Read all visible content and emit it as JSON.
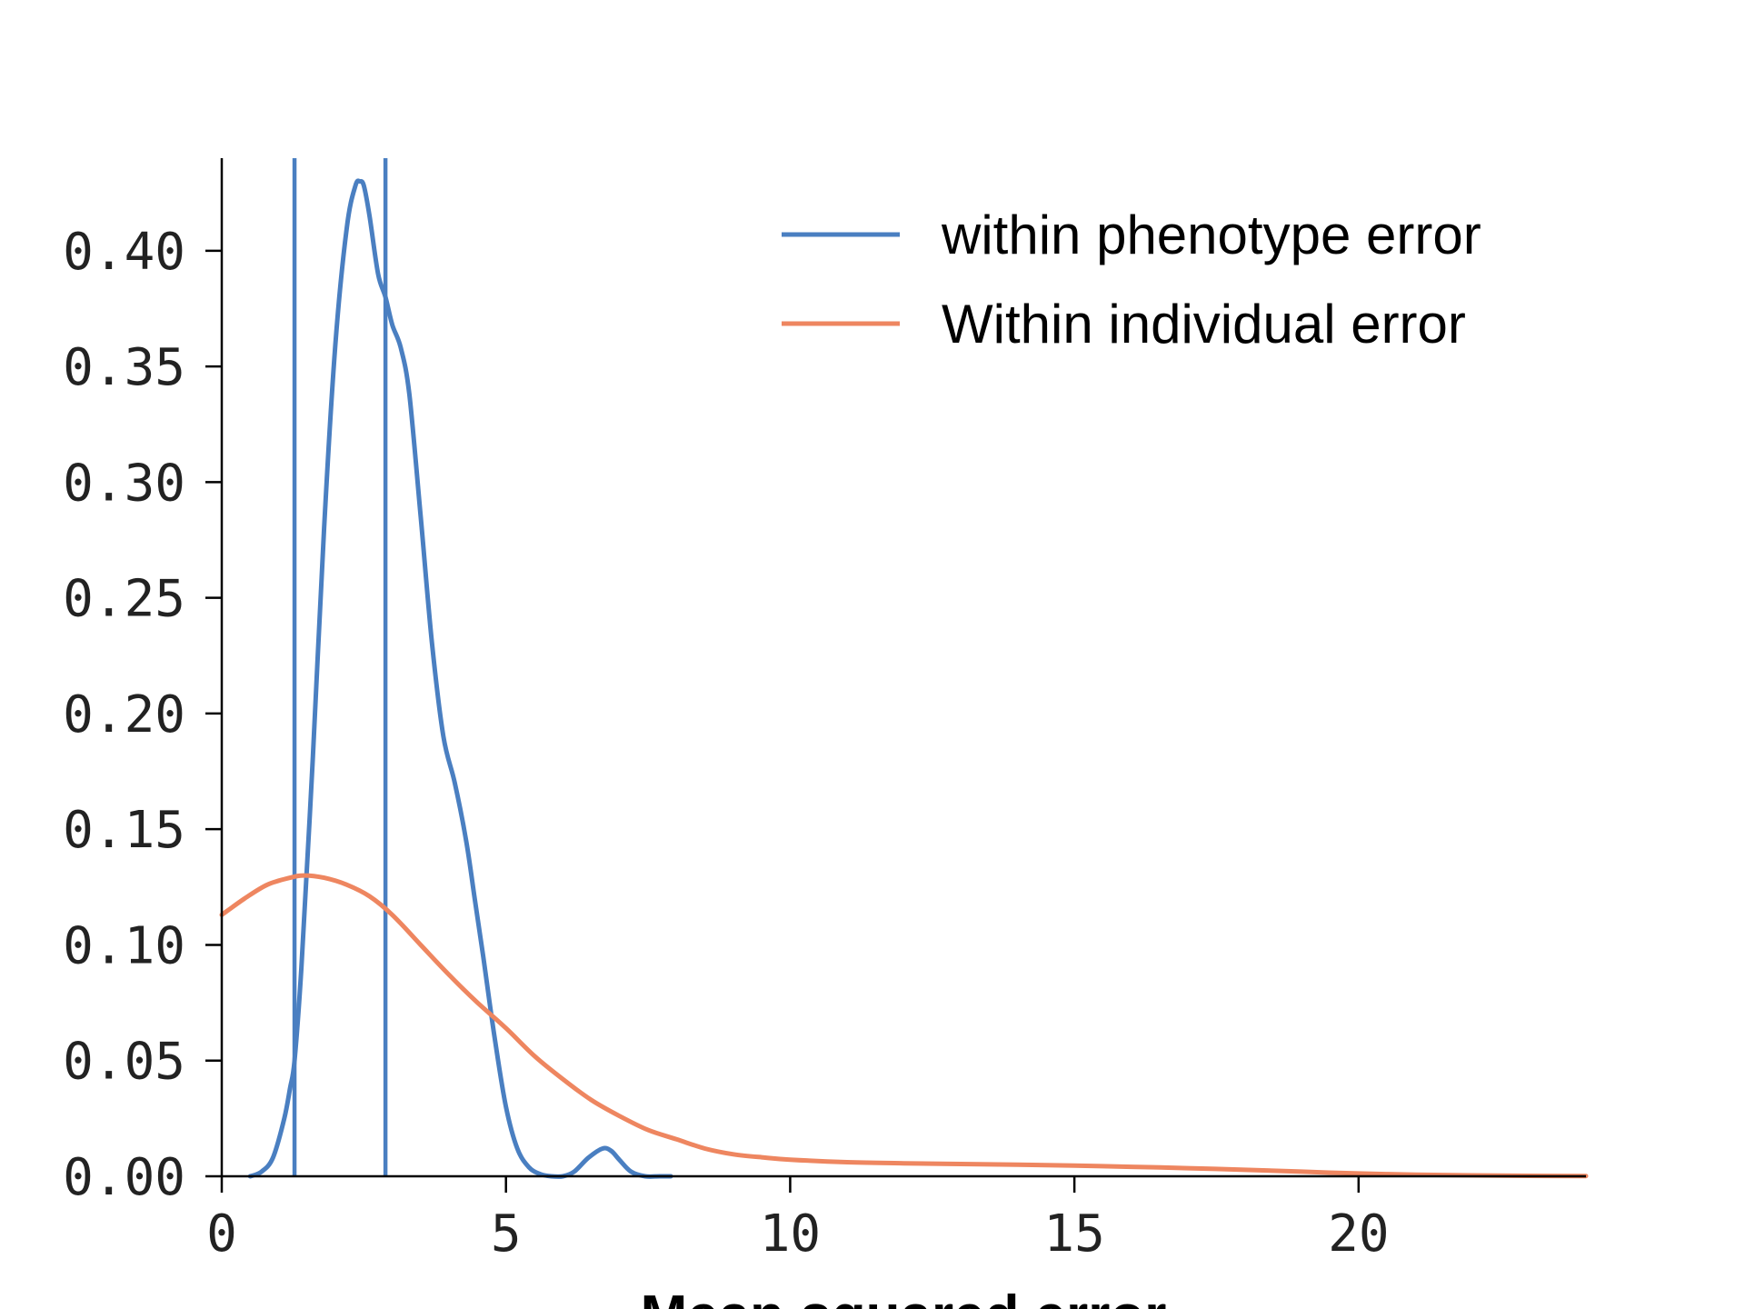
{
  "chart_data": {
    "type": "line",
    "xlabel": "Mean squared error",
    "ylabel": "",
    "xlim": [
      0,
      24
    ],
    "ylim": [
      0,
      0.44
    ],
    "x_ticks": [
      "0",
      "5",
      "10",
      "15",
      "20"
    ],
    "x_tick_values": [
      0,
      5,
      10,
      15,
      20
    ],
    "y_ticks": [
      "0.00",
      "0.05",
      "0.10",
      "0.15",
      "0.20",
      "0.25",
      "0.30",
      "0.35",
      "0.40"
    ],
    "y_tick_values": [
      0,
      0.05,
      0.1,
      0.15,
      0.2,
      0.25,
      0.3,
      0.35,
      0.4
    ],
    "grid": false,
    "legend": {
      "position": "top-right"
    },
    "vlines": [
      {
        "x": 1.28,
        "color": "#4a7fc1"
      },
      {
        "x": 2.88,
        "color": "#4a7fc1"
      }
    ],
    "series": [
      {
        "name": "within phenotype error",
        "color": "#4a7fc1",
        "x": [
          0.5,
          0.7,
          0.9,
          1.1,
          1.2,
          1.28,
          1.4,
          1.6,
          1.8,
          2.0,
          2.2,
          2.35,
          2.43,
          2.5,
          2.6,
          2.75,
          2.88,
          3.0,
          3.15,
          3.3,
          3.5,
          3.7,
          3.9,
          4.1,
          4.3,
          4.45,
          4.6,
          4.8,
          5.0,
          5.2,
          5.4,
          5.6,
          5.8,
          6.0,
          6.2,
          6.45,
          6.7,
          6.85,
          7.0,
          7.2,
          7.45,
          7.7,
          7.9
        ],
        "y": [
          0.0,
          0.002,
          0.008,
          0.025,
          0.038,
          0.05,
          0.09,
          0.18,
          0.28,
          0.36,
          0.41,
          0.428,
          0.43,
          0.428,
          0.415,
          0.39,
          0.38,
          0.368,
          0.358,
          0.338,
          0.285,
          0.23,
          0.19,
          0.17,
          0.145,
          0.12,
          0.095,
          0.06,
          0.03,
          0.012,
          0.004,
          0.001,
          0.0,
          0.0,
          0.002,
          0.008,
          0.012,
          0.011,
          0.007,
          0.002,
          0.0,
          0.0,
          0.0
        ]
      },
      {
        "name": "Within individual error",
        "color": "#ee8660",
        "x": [
          0,
          0.4,
          0.8,
          1.2,
          1.45,
          1.8,
          2.2,
          2.6,
          3.0,
          3.5,
          4.0,
          4.5,
          5.0,
          5.5,
          6.0,
          6.5,
          7.0,
          7.5,
          8.0,
          8.5,
          9.0,
          9.5,
          10.0,
          11.0,
          12.0,
          13.0,
          14.0,
          15.0,
          16.0,
          17.0,
          18.0,
          19.0,
          20.0,
          21.0,
          22.0,
          23.0,
          24.0
        ],
        "y": [
          0.113,
          0.12,
          0.126,
          0.129,
          0.13,
          0.129,
          0.126,
          0.121,
          0.113,
          0.1,
          0.087,
          0.075,
          0.064,
          0.052,
          0.042,
          0.033,
          0.026,
          0.02,
          0.016,
          0.012,
          0.0095,
          0.0082,
          0.0072,
          0.0061,
          0.0056,
          0.0053,
          0.005,
          0.0046,
          0.0041,
          0.0035,
          0.0028,
          0.002,
          0.0012,
          0.0007,
          0.0004,
          0.0002,
          0.0001
        ]
      }
    ]
  }
}
